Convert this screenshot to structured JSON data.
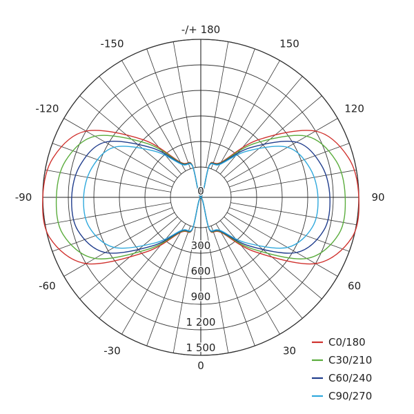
{
  "chart_data": {
    "type": "polar",
    "title": "",
    "angle_labels": [
      "-/+ 180",
      "150",
      "120",
      "90",
      "60",
      "30",
      "0",
      "-30",
      "-60",
      "-90",
      "-120",
      "-150"
    ],
    "angle_label_values": [
      180,
      150,
      120,
      90,
      60,
      30,
      0,
      -30,
      -60,
      -90,
      -120,
      -150
    ],
    "ring_labels": [
      "0",
      "300",
      "600",
      "900",
      "1 200",
      "1 500"
    ],
    "ring_values": [
      0,
      300,
      600,
      900,
      1200,
      1500
    ],
    "r_range": [
      0,
      1500
    ],
    "angles_deg": [
      0,
      15,
      30,
      45,
      60,
      75,
      90,
      105,
      120,
      135,
      150,
      165,
      180
    ],
    "series": [
      {
        "name": "C0/180",
        "color": "#d0312d",
        "values": [
          0,
          40,
          120,
          550,
          1200,
          1480,
          1500,
          1440,
          1200,
          600,
          120,
          40,
          0
        ]
      },
      {
        "name": "C30/210",
        "color": "#5aac3c",
        "values": [
          0,
          35,
          110,
          500,
          1080,
          1320,
          1340,
          1290,
          1080,
          540,
          110,
          35,
          0
        ]
      },
      {
        "name": "C60/240",
        "color": "#1f3c8c",
        "values": [
          0,
          30,
          100,
          450,
          940,
          1140,
          1160,
          1110,
          940,
          470,
          100,
          30,
          0
        ]
      },
      {
        "name": "C90/270",
        "color": "#2ea8dc",
        "values": [
          0,
          25,
          90,
          400,
          820,
          1000,
          1020,
          970,
          820,
          410,
          90,
          25,
          0
        ]
      }
    ],
    "legend_position": "bottom-right",
    "grid": true
  }
}
